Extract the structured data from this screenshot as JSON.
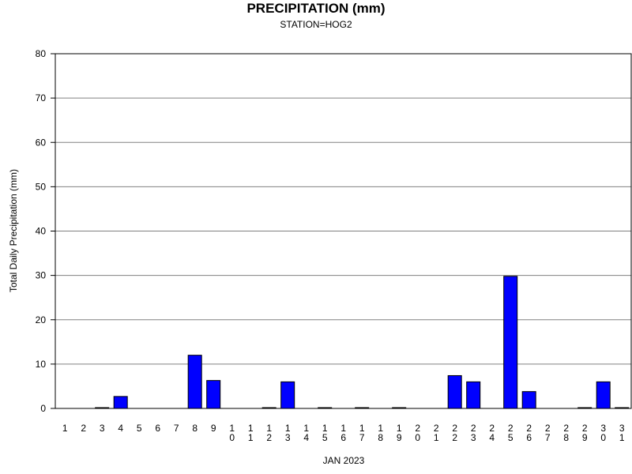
{
  "chart_data": {
    "type": "bar",
    "title": "PRECIPITATION (mm)",
    "subtitle": "STATION=HOG2",
    "xlabel": "JAN 2023",
    "ylabel": "Total Daily Precipitation (mm)",
    "ylim": [
      0,
      80
    ],
    "yticks": [
      0,
      10,
      20,
      30,
      40,
      50,
      60,
      70,
      80
    ],
    "grid": true,
    "bar_color": "#0000ff",
    "categories": [
      "1",
      "2",
      "3",
      "4",
      "5",
      "6",
      "7",
      "8",
      "9",
      "10",
      "11",
      "12",
      "13",
      "14",
      "15",
      "16",
      "17",
      "18",
      "19",
      "20",
      "21",
      "22",
      "23",
      "24",
      "25",
      "26",
      "27",
      "28",
      "29",
      "30",
      "31"
    ],
    "values": [
      null,
      null,
      0.1,
      2.7,
      null,
      null,
      null,
      12.0,
      6.3,
      null,
      null,
      0.1,
      6.0,
      null,
      0.1,
      null,
      0.1,
      null,
      0.1,
      null,
      null,
      7.4,
      6.0,
      null,
      29.8,
      3.8,
      null,
      null,
      0.1,
      6.0,
      0.1
    ]
  }
}
